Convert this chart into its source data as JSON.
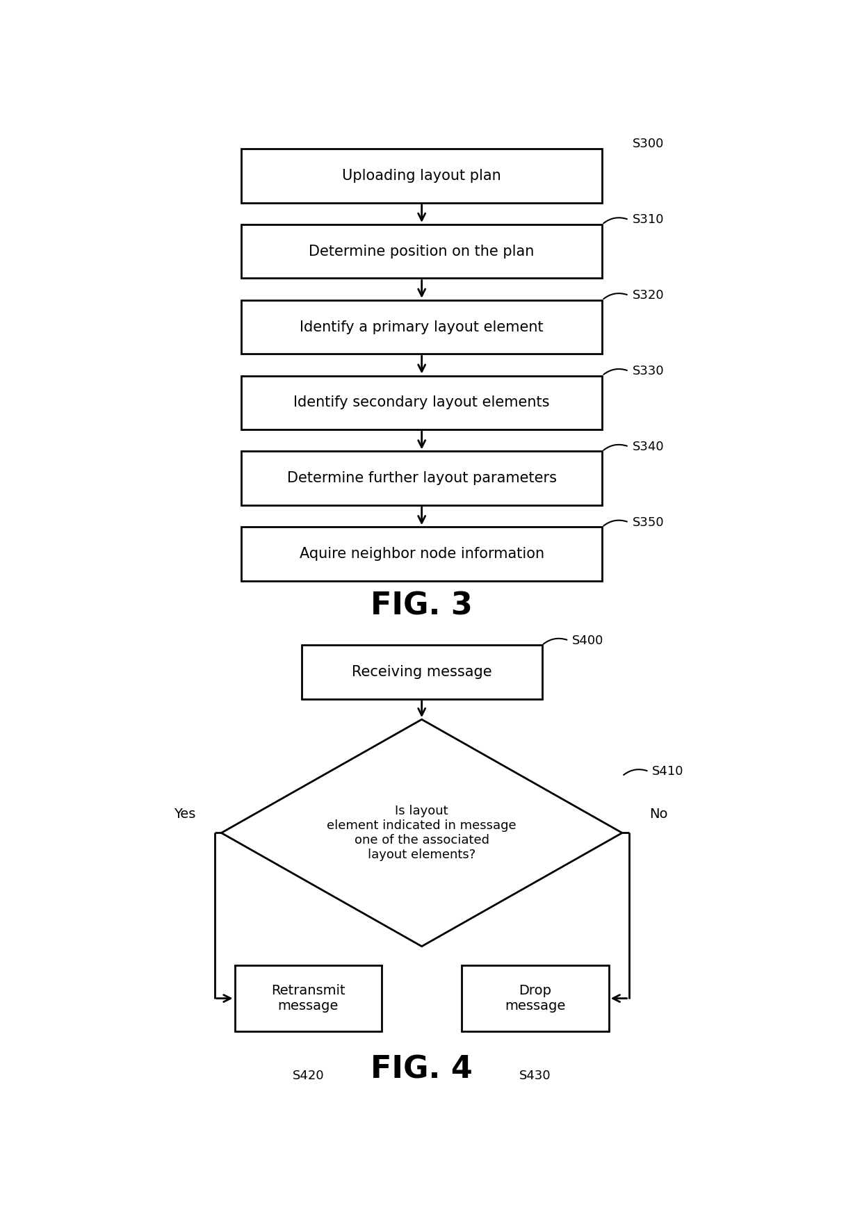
{
  "fig3_boxes": [
    {
      "label": "Uploading layout plan",
      "tag": "S300"
    },
    {
      "label": "Determine position on the plan",
      "tag": "S310"
    },
    {
      "label": "Identify a primary layout element",
      "tag": "S320"
    },
    {
      "label": "Identify secondary layout elements",
      "tag": "S330"
    },
    {
      "label": "Determine further layout parameters",
      "tag": "S340"
    },
    {
      "label": "Aquire neighbor node information",
      "tag": "S350"
    }
  ],
  "fig3_title": "FIG. 3",
  "fig4_title": "FIG. 4",
  "fig4_rect_top": {
    "label": "Receiving message",
    "tag": "S400"
  },
  "fig4_diamond": {
    "label": "Is layout\nelement indicated in message\none of the associated\nlayout elements?",
    "tag": "S410"
  },
  "fig4_rect_left": {
    "label": "Retransmit\nmessage",
    "tag": "S420"
  },
  "fig4_rect_right": {
    "label": "Drop\nmessage",
    "tag": "S430"
  },
  "fig4_yes_label": "Yes",
  "fig4_no_label": "No",
  "bg_color": "#ffffff",
  "box_edge_color": "#000000",
  "text_color": "#000000",
  "arrow_color": "#000000"
}
